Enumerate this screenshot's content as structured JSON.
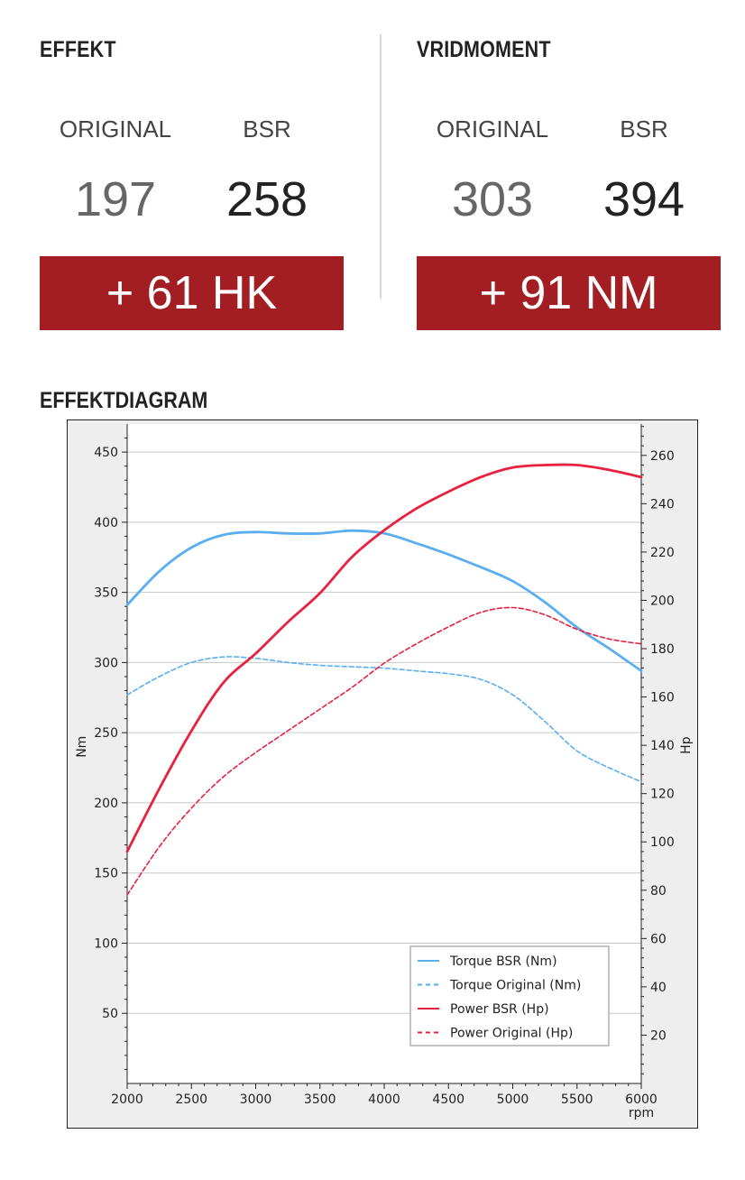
{
  "effekt": {
    "title": "EFFEKT",
    "original_label": "ORIGINAL",
    "bsr_label": "BSR",
    "original_value": "197",
    "bsr_value": "258",
    "gain": "+ 61 HK"
  },
  "vridmoment": {
    "title": "VRIDMOMENT",
    "original_label": "ORIGINAL",
    "bsr_label": "BSR",
    "original_value": "303",
    "bsr_value": "394",
    "gain": "+ 91 NM"
  },
  "diagram": {
    "title": "EFFEKTDIAGRAM"
  },
  "chart_data": {
    "type": "line",
    "xlabel": "rpm",
    "ylabel_left": "Nm",
    "ylabel_right": "Hp",
    "xlim": [
      2000,
      6000
    ],
    "ylim_left": [
      0,
      470
    ],
    "ylim_right": [
      0,
      273
    ],
    "x_ticks": [
      2000,
      2500,
      3000,
      3500,
      4000,
      4500,
      5000,
      5500,
      6000
    ],
    "y_ticks_left": [
      50,
      100,
      150,
      200,
      250,
      300,
      350,
      400,
      450
    ],
    "y_ticks_right": [
      20,
      40,
      60,
      80,
      100,
      120,
      140,
      160,
      180,
      200,
      220,
      240,
      260
    ],
    "grid": true,
    "legend_position": "bottom-right",
    "colors": {
      "torque": "#5aaef0",
      "power": "#e8213f"
    },
    "series": [
      {
        "name": "Torque BSR (Nm)",
        "axis": "left",
        "style": "solid",
        "color": "#5aaef0",
        "x": [
          2000,
          2250,
          2500,
          2750,
          3000,
          3250,
          3500,
          3750,
          4000,
          4250,
          4500,
          4750,
          5000,
          5250,
          5500,
          5750,
          6000
        ],
        "y": [
          341,
          365,
          382,
          391,
          393,
          392,
          392,
          394,
          392,
          385,
          377,
          368,
          358,
          343,
          325,
          310,
          294
        ]
      },
      {
        "name": "Torque Original (Nm)",
        "axis": "left",
        "style": "dashed",
        "color": "#5aaef0",
        "x": [
          2000,
          2250,
          2500,
          2750,
          3000,
          3250,
          3500,
          3750,
          4000,
          4250,
          4500,
          4750,
          5000,
          5250,
          5500,
          5750,
          6000
        ],
        "y": [
          277,
          290,
          300,
          304,
          303,
          300,
          298,
          297,
          296,
          294,
          292,
          288,
          277,
          258,
          237,
          225,
          215
        ]
      },
      {
        "name": "Power BSR (Hp)",
        "axis": "right",
        "style": "solid",
        "color": "#e8213f",
        "x": [
          2000,
          2250,
          2500,
          2750,
          3000,
          3250,
          3500,
          3750,
          4000,
          4250,
          4500,
          4750,
          5000,
          5250,
          5500,
          5750,
          6000
        ],
        "y": [
          96,
          122,
          146,
          166,
          178,
          191,
          203,
          218,
          229,
          238,
          245,
          251,
          255,
          256,
          256,
          254,
          251
        ]
      },
      {
        "name": "Power Original (Hp)",
        "axis": "right",
        "style": "dashed",
        "color": "#e8213f",
        "x": [
          2000,
          2250,
          2500,
          2750,
          3000,
          3250,
          3500,
          3750,
          4000,
          4250,
          4500,
          4750,
          5000,
          5250,
          5500,
          5750,
          6000
        ],
        "y": [
          78,
          98,
          114,
          127,
          137,
          146,
          155,
          164,
          174,
          182,
          189,
          195,
          197,
          194,
          188,
          184,
          182
        ]
      }
    ]
  }
}
